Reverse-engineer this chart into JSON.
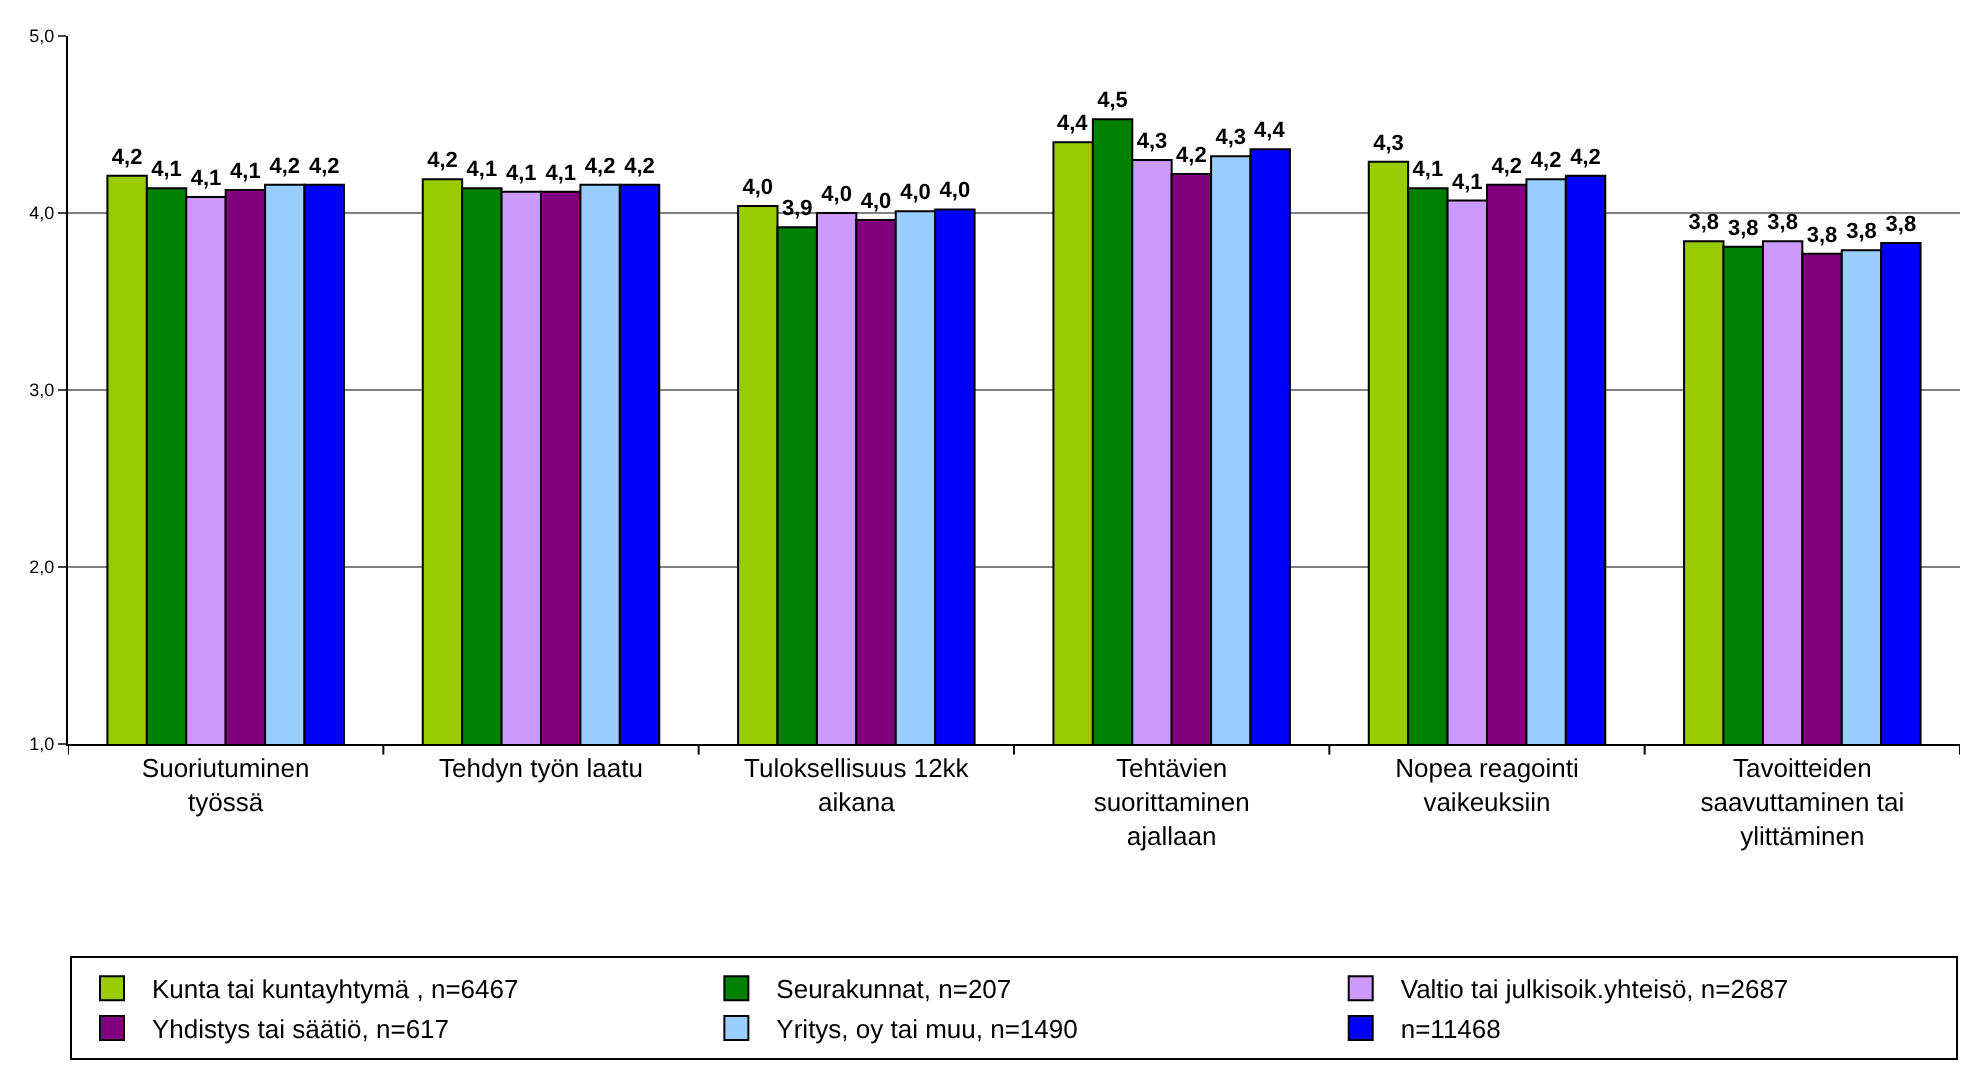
{
  "chart_data": {
    "type": "bar",
    "categories": [
      "Suoriutuminen\ntyössä",
      "Tehdyn työn laatu",
      "Tuloksellisuus 12kk\naikana",
      "Tehtävien\nsuorittaminen\najallaan",
      "Nopea reagointi\nvaikeuksiin",
      "Tavoitteiden\nsaavuttaminen tai\nylittäminen"
    ],
    "series": [
      {
        "name": "Kunta tai kuntayhtymä , n=6467",
        "color": "#99cc00",
        "values": [
          4.21,
          4.19,
          4.04,
          4.4,
          4.29,
          3.84
        ],
        "value_labels": [
          "4,2",
          "4,2",
          "4,0",
          "4,4",
          "4,3",
          "3,8"
        ]
      },
      {
        "name": "Seurakunnat, n=207",
        "color": "#008000",
        "values": [
          4.14,
          4.14,
          3.92,
          4.53,
          4.14,
          3.81
        ],
        "value_labels": [
          "4,1",
          "4,1",
          "3,9",
          "4,5",
          "4,1",
          "3,8"
        ]
      },
      {
        "name": "Valtio tai julkisoik.yhteisö, n=2687",
        "color": "#cc99ff",
        "values": [
          4.09,
          4.12,
          4.0,
          4.3,
          4.07,
          3.84
        ],
        "value_labels": [
          "4,1",
          "4,1",
          "4,0",
          "4,3",
          "4,1",
          "3,8"
        ]
      },
      {
        "name": "Yhdistys tai säätiö, n=617",
        "color": "#800080",
        "values": [
          4.13,
          4.12,
          3.96,
          4.22,
          4.16,
          3.77
        ],
        "value_labels": [
          "4,1",
          "4,1",
          "4,0",
          "4,2",
          "4,2",
          "3,8"
        ]
      },
      {
        "name": "Yritys, oy tai muu, n=1490",
        "color": "#99ccff",
        "values": [
          4.16,
          4.16,
          4.01,
          4.32,
          4.19,
          3.79
        ],
        "value_labels": [
          "4,2",
          "4,2",
          "4,0",
          "4,3",
          "4,2",
          "3,8"
        ]
      },
      {
        "name": "n=11468",
        "color": "#0000ff",
        "values": [
          4.16,
          4.16,
          4.02,
          4.36,
          4.21,
          3.83
        ],
        "value_labels": [
          "4,2",
          "4,2",
          "4,0",
          "4,4",
          "4,2",
          "3,8"
        ]
      }
    ],
    "ylim": [
      1,
      5
    ],
    "yticks": [
      {
        "value": 1,
        "label": "1,0"
      },
      {
        "value": 2,
        "label": "2,0"
      },
      {
        "value": 3,
        "label": "3,0"
      },
      {
        "value": 4,
        "label": "4,0"
      },
      {
        "value": 5,
        "label": "5,0"
      }
    ],
    "grid": "y",
    "legend": "bottom"
  }
}
